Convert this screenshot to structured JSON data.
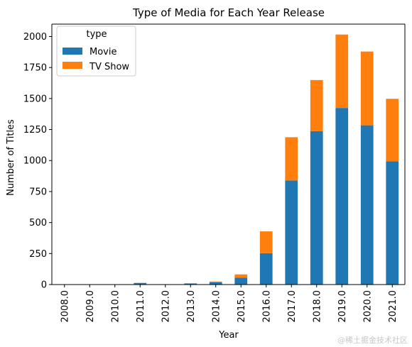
{
  "chart_data": {
    "type": "bar",
    "stacked": true,
    "title": "Type of Media for Each Year Release",
    "xlabel": "Year",
    "ylabel": "Number of Titles",
    "ylim": [
      0,
      2100
    ],
    "yticks": [
      0,
      250,
      500,
      750,
      1000,
      1250,
      1500,
      1750,
      2000
    ],
    "ytick_labels": [
      "0",
      "250",
      "500",
      "750",
      "1000",
      "1250",
      "1500",
      "1750",
      "2000"
    ],
    "categories": [
      "2008.0",
      "2009.0",
      "2010.0",
      "2011.0",
      "2012.0",
      "2013.0",
      "2014.0",
      "2015.0",
      "2016.0",
      "2017.0",
      "2018.0",
      "2019.0",
      "2020.0",
      "2021.0"
    ],
    "series": [
      {
        "name": "Movie",
        "color": "#1f77b4",
        "values": [
          1,
          2,
          1,
          13,
          3,
          6,
          19,
          56,
          253,
          839,
          1237,
          1424,
          1284,
          993
        ]
      },
      {
        "name": "TV Show",
        "color": "#ff7f0e",
        "values": [
          1,
          0,
          0,
          0,
          0,
          5,
          5,
          26,
          176,
          349,
          412,
          592,
          595,
          505
        ]
      }
    ],
    "legend": {
      "title": "type",
      "position": "top-left"
    },
    "grid": false
  },
  "watermark": "@稀土掘金技术社区"
}
